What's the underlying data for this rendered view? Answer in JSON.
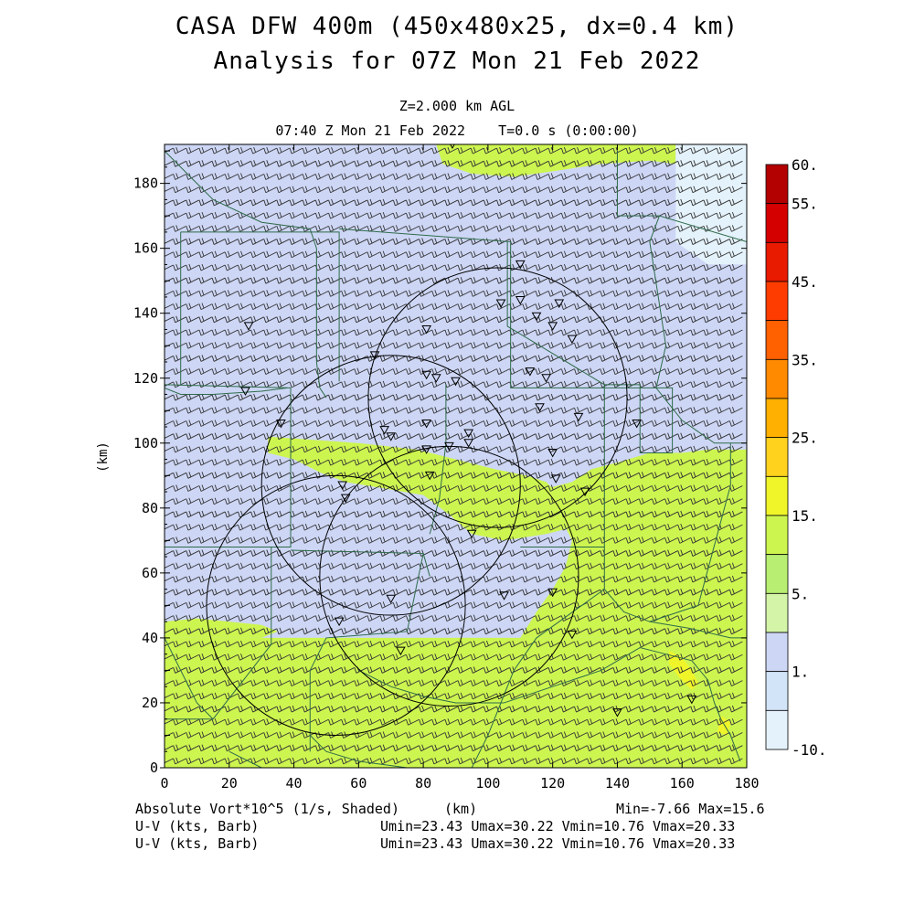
{
  "header": {
    "title_line1": "CASA DFW 400m (450x480x25, dx=0.4 km)",
    "title_line2": "Analysis for 07Z Mon 21 Feb 2022",
    "level": "Z=2.000 km AGL",
    "time": "07:40 Z Mon 21 Feb 2022    T=0.0 s (0:00:00)"
  },
  "footer": {
    "field_label": "Absolute Vort*10^5 (1/s, Shaded)",
    "x_unit": "(km)",
    "minmax": "Min=-7.66 Max=15.6",
    "barb1_label": "U-V (kts, Barb)",
    "barb1_stats": "Umin=23.43 Umax=30.22 Vmin=10.76 Vmax=20.33",
    "barb2_label": "U-V (kts, Barb)",
    "barb2_stats": "Umin=23.43 Umax=30.22 Vmin=10.76 Vmax=20.33"
  },
  "chart_data": {
    "type": "heatmap",
    "field": "Absolute Vort*10^5 (1/s, Shaded)",
    "xlabel": "(km)",
    "ylabel": "(km)",
    "xlim": [
      0,
      180
    ],
    "ylim": [
      0,
      192
    ],
    "x_ticks": [
      0,
      20,
      40,
      60,
      80,
      100,
      120,
      140,
      160,
      180
    ],
    "y_ticks": [
      0,
      20,
      40,
      60,
      80,
      100,
      120,
      140,
      160,
      180
    ],
    "min": -7.66,
    "max": 15.6,
    "colorbar": {
      "labels": [
        "60.",
        "55.",
        "45.",
        "35.",
        "25.",
        "15.",
        "5.",
        "1.",
        "-10."
      ],
      "label_values": [
        60,
        55,
        45,
        35,
        25,
        15,
        5,
        1,
        -10
      ],
      "bins_top_to_bottom": [
        "#b30000",
        "#d40000",
        "#e81a00",
        "#ff3c00",
        "#ff6000",
        "#ff8a00",
        "#ffb000",
        "#ffd21e",
        "#f0f52a",
        "#cdf550",
        "#b8ef72",
        "#d4f5a8",
        "#cdd6f5",
        "#d2e4f7",
        "#e4f2fb"
      ]
    },
    "regions_km": [
      {
        "level": -3,
        "color": "#e4f2fb",
        "points": [
          [
            158,
            192
          ],
          [
            180,
            192
          ],
          [
            180,
            155
          ],
          [
            168,
            155
          ],
          [
            158,
            162
          ]
        ]
      },
      {
        "level": -3,
        "color": "#e4f2fb",
        "points": [
          [
            160,
            130
          ],
          [
            180,
            130
          ],
          [
            180,
            100
          ],
          [
            170,
            105
          ],
          [
            162,
            112
          ]
        ]
      },
      {
        "level": 1,
        "color": "#cdd6f5",
        "points": [
          [
            0,
            192
          ],
          [
            85,
            192
          ],
          [
            85,
            188
          ],
          [
            110,
            184
          ],
          [
            130,
            186
          ],
          [
            145,
            188
          ],
          [
            158,
            190
          ],
          [
            158,
            162
          ],
          [
            168,
            155
          ],
          [
            180,
            155
          ],
          [
            180,
            100
          ],
          [
            170,
            102
          ],
          [
            160,
            98
          ],
          [
            152,
            92
          ],
          [
            148,
            86
          ],
          [
            140,
            80
          ],
          [
            132,
            76
          ],
          [
            125,
            73
          ],
          [
            118,
            70
          ],
          [
            110,
            66
          ],
          [
            100,
            61
          ],
          [
            90,
            54
          ],
          [
            80,
            46
          ],
          [
            70,
            42
          ],
          [
            55,
            42
          ],
          [
            45,
            43
          ],
          [
            30,
            43
          ],
          [
            15,
            42
          ],
          [
            0,
            42
          ]
        ]
      },
      {
        "level": 8,
        "color": "#cdf550",
        "points": [
          [
            0,
            40
          ],
          [
            180,
            40
          ],
          [
            180,
            0
          ],
          [
            0,
            0
          ]
        ]
      },
      {
        "level": 8,
        "color": "#cdf550",
        "points": [
          [
            84,
            192
          ],
          [
            86,
            186
          ],
          [
            95,
            183
          ],
          [
            108,
            182
          ],
          [
            122,
            184
          ],
          [
            135,
            186
          ],
          [
            150,
            187
          ],
          [
            158,
            186
          ],
          [
            158,
            192
          ]
        ]
      },
      {
        "level": 8,
        "color": "#cdf550",
        "points": [
          [
            32,
            102
          ],
          [
            60,
            100
          ],
          [
            78,
            98
          ],
          [
            90,
            95
          ],
          [
            102,
            92
          ],
          [
            112,
            90
          ],
          [
            118,
            88
          ],
          [
            124,
            82
          ],
          [
            126,
            74
          ],
          [
            118,
            72
          ],
          [
            105,
            70
          ],
          [
            95,
            72
          ],
          [
            88,
            78
          ],
          [
            80,
            84
          ],
          [
            68,
            86
          ],
          [
            56,
            88
          ],
          [
            48,
            91
          ],
          [
            40,
            95
          ],
          [
            32,
            97
          ]
        ]
      },
      {
        "level": 8,
        "color": "#cdf550",
        "points": [
          [
            118,
            86
          ],
          [
            126,
            88
          ],
          [
            132,
            92
          ],
          [
            140,
            94
          ],
          [
            150,
            97
          ],
          [
            160,
            97
          ],
          [
            168,
            98
          ],
          [
            180,
            98
          ],
          [
            180,
            40
          ],
          [
            110,
            40
          ],
          [
            115,
            48
          ],
          [
            120,
            55
          ],
          [
            124,
            62
          ],
          [
            126,
            70
          ]
        ]
      },
      {
        "level": 8,
        "color": "#cdf550",
        "points": [
          [
            0,
            45
          ],
          [
            10,
            46
          ],
          [
            20,
            45
          ],
          [
            30,
            44
          ],
          [
            35,
            42
          ],
          [
            30,
            40
          ],
          [
            0,
            40
          ]
        ]
      },
      {
        "level": 15,
        "color": "#f0f52a",
        "points": [
          [
            156,
            36
          ],
          [
            160,
            34
          ],
          [
            163,
            30
          ],
          [
            165,
            26
          ],
          [
            163,
            24
          ],
          [
            159,
            28
          ],
          [
            156,
            32
          ]
        ]
      },
      {
        "level": 15,
        "color": "#f0f52a",
        "points": [
          [
            172,
            16
          ],
          [
            175,
            14
          ],
          [
            174,
            10
          ],
          [
            171,
            11
          ]
        ]
      }
    ],
    "county_lines_km": [
      [
        [
          0,
          190
        ],
        [
          5,
          185
        ],
        [
          10,
          180
        ],
        [
          15,
          175
        ],
        [
          30,
          168
        ],
        [
          45,
          166
        ],
        [
          47,
          160
        ],
        [
          47,
          125
        ],
        [
          48,
          117
        ],
        [
          50,
          114
        ]
      ],
      [
        [
          0,
          117
        ],
        [
          5,
          115
        ],
        [
          15,
          115
        ],
        [
          30,
          116
        ],
        [
          38,
          117
        ]
      ],
      [
        [
          5,
          165
        ],
        [
          54,
          165
        ],
        [
          54,
          119
        ]
      ],
      [
        [
          5,
          165
        ],
        [
          5,
          118
        ]
      ],
      [
        [
          0,
          118
        ],
        [
          39,
          117
        ],
        [
          39,
          68
        ],
        [
          0,
          68
        ]
      ],
      [
        [
          54,
          166
        ],
        [
          107,
          162
        ],
        [
          107,
          117
        ],
        [
          157,
          117
        ],
        [
          157,
          97
        ],
        [
          147,
          97
        ],
        [
          147,
          118
        ],
        [
          136,
          118
        ],
        [
          136,
          68
        ],
        [
          110,
          68
        ]
      ],
      [
        [
          39,
          67
        ],
        [
          80,
          66
        ],
        [
          82,
          59
        ]
      ],
      [
        [
          80,
          66
        ],
        [
          75,
          42
        ],
        [
          50,
          40
        ],
        [
          45,
          30
        ],
        [
          45,
          5
        ]
      ],
      [
        [
          33,
          68
        ],
        [
          33,
          38
        ],
        [
          15,
          15
        ],
        [
          0,
          15
        ]
      ],
      [
        [
          0,
          40
        ],
        [
          10,
          20
        ],
        [
          15,
          15
        ]
      ],
      [
        [
          87,
          118
        ],
        [
          87,
          100
        ],
        [
          85,
          83
        ],
        [
          82,
          72
        ]
      ],
      [
        [
          106,
          162
        ],
        [
          106,
          136
        ],
        [
          136,
          118
        ]
      ],
      [
        [
          136,
          68
        ],
        [
          136,
          55
        ],
        [
          142,
          48
        ],
        [
          150,
          45
        ],
        [
          162,
          43
        ],
        [
          175,
          40
        ],
        [
          180,
          40
        ]
      ],
      [
        [
          140,
          190
        ],
        [
          140,
          170
        ],
        [
          153,
          170
        ],
        [
          180,
          162
        ]
      ],
      [
        [
          153,
          170
        ],
        [
          150,
          162
        ],
        [
          155,
          130
        ],
        [
          152,
          117
        ],
        [
          160,
          107
        ],
        [
          170,
          100
        ],
        [
          180,
          100
        ]
      ],
      [
        [
          175,
          100
        ],
        [
          175,
          87
        ],
        [
          165,
          50
        ],
        [
          150,
          45
        ]
      ],
      [
        [
          136,
          55
        ],
        [
          115,
          40
        ],
        [
          108,
          30
        ],
        [
          100,
          10
        ],
        [
          95,
          0
        ]
      ],
      [
        [
          105,
          20
        ],
        [
          120,
          25
        ],
        [
          135,
          30
        ],
        [
          147,
          37
        ],
        [
          155,
          35
        ],
        [
          163,
          33
        ],
        [
          168,
          27
        ],
        [
          170,
          20
        ],
        [
          172,
          15
        ],
        [
          175,
          10
        ],
        [
          178,
          2
        ]
      ],
      [
        [
          45,
          10
        ],
        [
          50,
          5
        ],
        [
          60,
          2
        ],
        [
          75,
          0
        ]
      ],
      [
        [
          60,
          30
        ],
        [
          70,
          25
        ],
        [
          80,
          22
        ],
        [
          90,
          20
        ],
        [
          105,
          20
        ]
      ],
      [
        [
          20,
          5
        ],
        [
          30,
          0
        ]
      ]
    ],
    "radar_circles_km": [
      {
        "cx": 103,
        "cy": 114,
        "r": 40
      },
      {
        "cx": 70,
        "cy": 87,
        "r": 40
      },
      {
        "cx": 88,
        "cy": 59,
        "r": 40
      },
      {
        "cx": 53,
        "cy": 50,
        "r": 40
      }
    ],
    "station_markers_km": [
      [
        89,
        192
      ],
      [
        110,
        155
      ],
      [
        104,
        143
      ],
      [
        110,
        144
      ],
      [
        122,
        143
      ],
      [
        115,
        139
      ],
      [
        120,
        136
      ],
      [
        126,
        132
      ],
      [
        81,
        135
      ],
      [
        26,
        136
      ],
      [
        65,
        127
      ],
      [
        113,
        122
      ],
      [
        81,
        121
      ],
      [
        84,
        120
      ],
      [
        90,
        119
      ],
      [
        118,
        120
      ],
      [
        116,
        111
      ],
      [
        128,
        108
      ],
      [
        146,
        106
      ],
      [
        36,
        106
      ],
      [
        68,
        104
      ],
      [
        70,
        102
      ],
      [
        81,
        106
      ],
      [
        94,
        103
      ],
      [
        94,
        100
      ],
      [
        88,
        99
      ],
      [
        81,
        98
      ],
      [
        120,
        97
      ],
      [
        121,
        89
      ],
      [
        130,
        85
      ],
      [
        82,
        90
      ],
      [
        55,
        87
      ],
      [
        56,
        83
      ],
      [
        95,
        72
      ],
      [
        70,
        52
      ],
      [
        105,
        53
      ],
      [
        120,
        54
      ],
      [
        54,
        45
      ],
      [
        73,
        36
      ],
      [
        126,
        41
      ],
      [
        140,
        17
      ],
      [
        163,
        21
      ],
      [
        25,
        116
      ]
    ],
    "wind_barbs": {
      "u_range": [
        23.43,
        30.22
      ],
      "v_range": [
        10.76,
        20.33
      ],
      "spacing_km": 4
    }
  }
}
